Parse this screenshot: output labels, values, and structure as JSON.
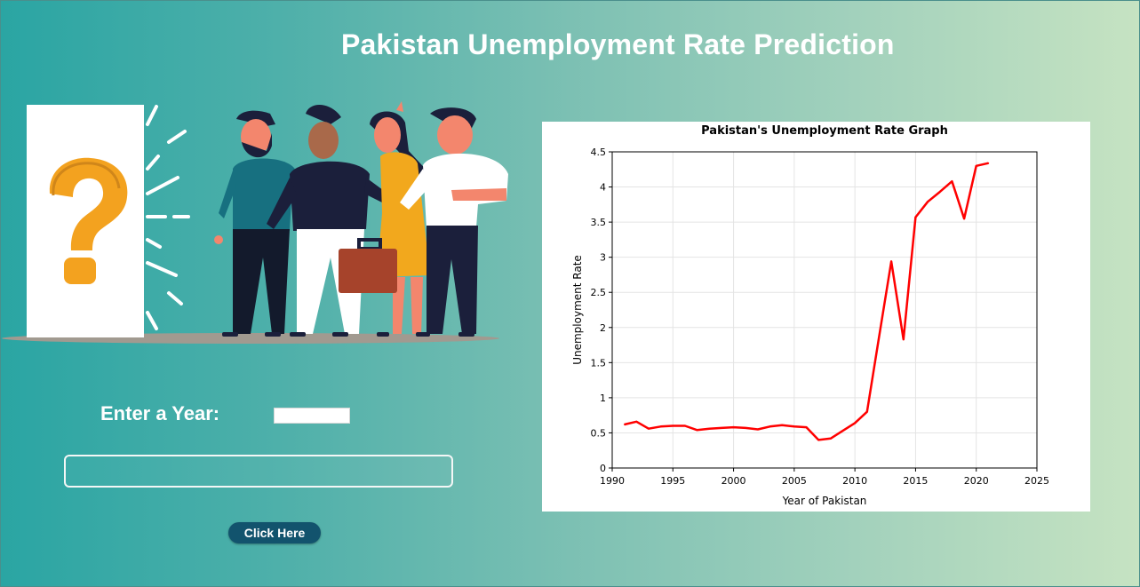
{
  "page": {
    "title": "Pakistan Unemployment Rate Prediction"
  },
  "form": {
    "year_label": "Enter a Year:",
    "year_value": "",
    "result_text": "",
    "button_label": "Click Here"
  },
  "illustration": {
    "icon": "question-mark-icon",
    "colors": {
      "question_mark": "#f3a21f",
      "teal_shirt": "#177080",
      "navy": "#1b1f3b",
      "yellow_dress": "#f2a81d",
      "briefcase": "#a6432b",
      "skin": "#f3866d"
    }
  },
  "chart_data": {
    "type": "line",
    "title": "Pakistan's Unemployment Rate Graph",
    "xlabel": "Year of Pakistan",
    "ylabel": "Unemployment Rate",
    "xlim": [
      1990,
      2025
    ],
    "ylim": [
      0,
      4.5
    ],
    "xticks": [
      1990,
      1995,
      2000,
      2005,
      2010,
      2015,
      2020,
      2025
    ],
    "yticks": [
      0,
      0.5,
      1,
      1.5,
      2,
      2.5,
      3,
      3.5,
      4,
      4.5
    ],
    "xtick_labels": [
      "1990",
      "1995",
      "2000",
      "2005",
      "2010",
      "2015",
      "2020",
      "2025"
    ],
    "ytick_labels": [
      "0",
      "0.5",
      "1",
      "1.5",
      "2",
      "2.5",
      "3",
      "3.5",
      "4",
      "4.5"
    ],
    "grid": true,
    "line_color": "#ff0000",
    "x": [
      1991,
      1992,
      1993,
      1994,
      1995,
      1996,
      1997,
      1998,
      1999,
      2000,
      2001,
      2002,
      2003,
      2004,
      2005,
      2006,
      2007,
      2008,
      2009,
      2010,
      2011,
      2012,
      2013,
      2014,
      2015,
      2016,
      2017,
      2018,
      2019,
      2020,
      2021
    ],
    "y": [
      0.62,
      0.66,
      0.56,
      0.59,
      0.6,
      0.6,
      0.54,
      0.56,
      0.57,
      0.58,
      0.57,
      0.55,
      0.59,
      0.61,
      0.59,
      0.58,
      0.4,
      0.42,
      0.53,
      0.64,
      0.8,
      1.88,
      2.94,
      1.83,
      3.57,
      3.79,
      3.93,
      4.08,
      3.55,
      4.3,
      4.34
    ]
  }
}
